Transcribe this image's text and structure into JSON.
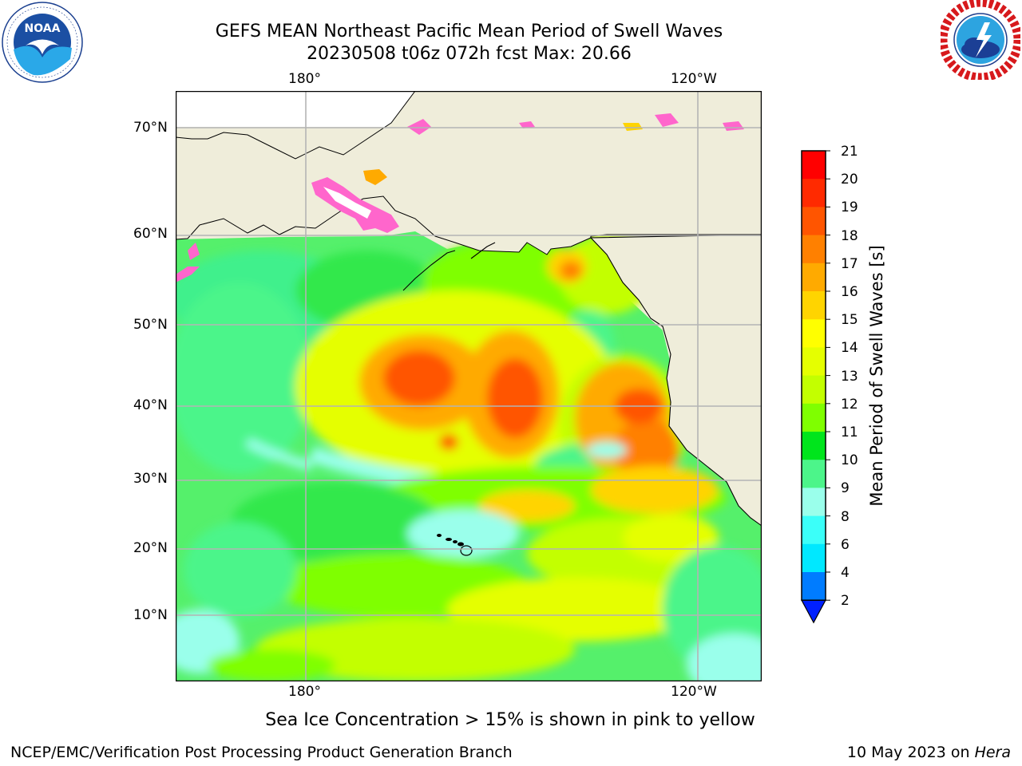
{
  "header": {
    "title_line1": "GEFS MEAN Northeast Pacific Mean Period of Swell Waves",
    "title_line2": "20230508 t06z 072h fcst   Max: 20.66"
  },
  "logos": {
    "noaa": {
      "text": "NOAA",
      "ring_text": "NATIONAL OCEANIC AND ATMOSPHERIC ADMINISTRATION · U.S. DEPARTMENT OF COMMERCE"
    },
    "nws": {
      "ring_text": "NATIONAL WEATHER SERVICE"
    }
  },
  "map": {
    "lon_labels_top": [
      "180°",
      "120°W"
    ],
    "lon_labels_bottom": [
      "180°",
      "120°W"
    ],
    "lat_labels": [
      "70°N",
      "60°N",
      "50°N",
      "40°N",
      "30°N",
      "20°N",
      "10°N"
    ],
    "colors": {
      "land": "#efedda",
      "ocean_base": "#55f06b",
      "grid": "#b4b4b4",
      "ice_pink": "#ff66cc"
    }
  },
  "colorbar": {
    "label": "Mean Period of Swell Waves [s]",
    "ticks": [
      "21",
      "20",
      "19",
      "18",
      "17",
      "16",
      "15",
      "14",
      "13",
      "12",
      "11",
      "10",
      "9",
      "8",
      "6",
      "4",
      "2"
    ],
    "colors": [
      "#ff0000",
      "#ff2a00",
      "#ff5500",
      "#ff8000",
      "#ffaa00",
      "#ffd400",
      "#ffff00",
      "#e5ff00",
      "#c3ff00",
      "#7fff00",
      "#00e51c",
      "#4cf58a",
      "#9affeb",
      "#3bfff9",
      "#00e8ff",
      "#007cff"
    ],
    "under_color": "#0020ff"
  },
  "notes": {
    "ice_note": "Sea Ice Concentration > 15% is shown in pink to yellow"
  },
  "footer": {
    "left": "NCEP/EMC/Verification Post Processing Product Generation Branch",
    "right_prefix": "10 May 2023 on ",
    "right_machine": "Hera"
  }
}
